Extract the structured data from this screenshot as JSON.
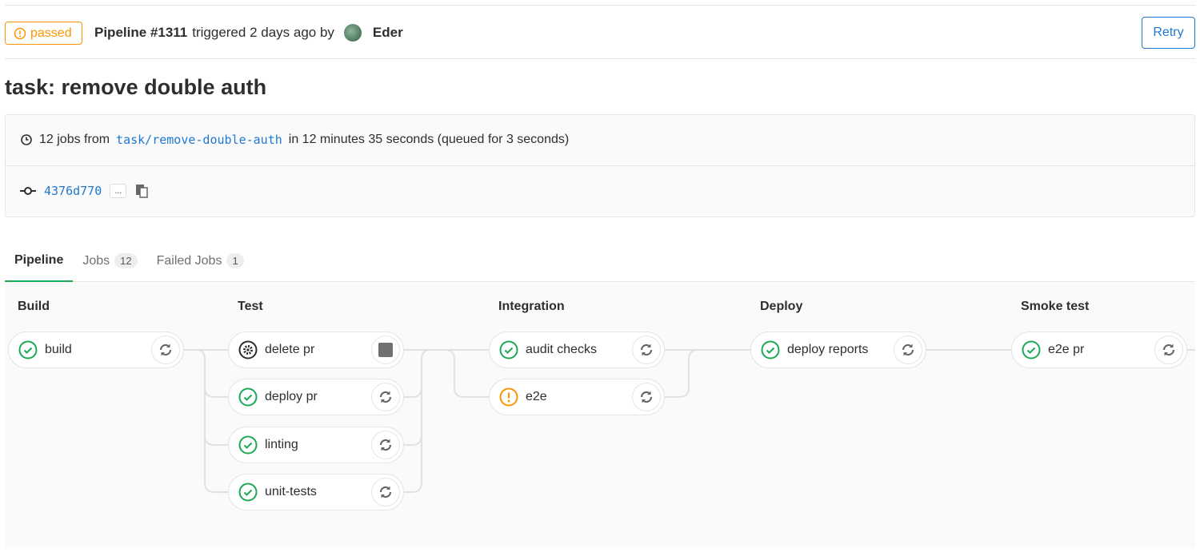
{
  "header": {
    "status": "passed",
    "pipeline": "Pipeline #1311",
    "triggered": "triggered 2 days ago by",
    "user": "Eder",
    "retry": "Retry"
  },
  "title": "task: remove double auth",
  "info": {
    "jobs_prefix": "12 jobs from",
    "branch": "task/remove-double-auth",
    "duration": "in 12 minutes 35 seconds (queued for 3 seconds)",
    "commit": "4376d770",
    "ellipsis": "..."
  },
  "tabs": [
    {
      "label": "Pipeline"
    },
    {
      "label": "Jobs",
      "count": "12"
    },
    {
      "label": "Failed Jobs",
      "count": "1"
    }
  ],
  "stages": [
    {
      "name": "Build",
      "jobs": [
        {
          "name": "build",
          "status": "success",
          "action": "retry"
        }
      ]
    },
    {
      "name": "Test",
      "jobs": [
        {
          "name": "delete pr",
          "status": "manual",
          "action": "stop"
        },
        {
          "name": "deploy pr",
          "status": "success",
          "action": "retry"
        },
        {
          "name": "linting",
          "status": "success",
          "action": "retry"
        },
        {
          "name": "unit-tests",
          "status": "success",
          "action": "retry"
        }
      ]
    },
    {
      "name": "Integration",
      "jobs": [
        {
          "name": "audit checks",
          "status": "success",
          "action": "retry"
        },
        {
          "name": "e2e",
          "status": "warning",
          "action": "retry"
        }
      ]
    },
    {
      "name": "Deploy",
      "jobs": [
        {
          "name": "deploy reports",
          "status": "success",
          "action": "retry"
        }
      ]
    },
    {
      "name": "Smoke test",
      "jobs": [
        {
          "name": "e2e pr",
          "status": "success",
          "action": "retry"
        }
      ]
    }
  ],
  "colors": {
    "success": "#1aaa55",
    "warning": "#fc9403",
    "link": "#1f78d1"
  }
}
